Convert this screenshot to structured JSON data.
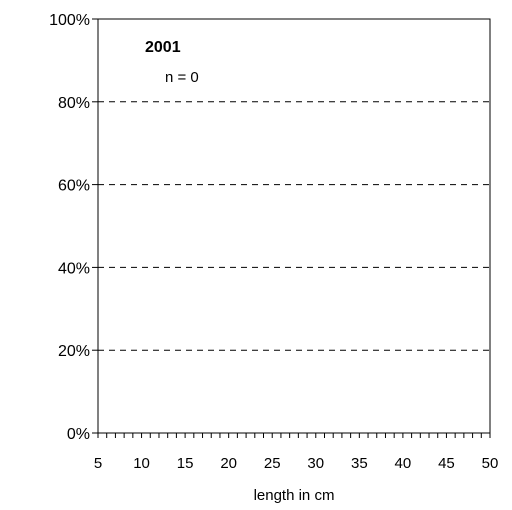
{
  "chart_data": {
    "type": "bar",
    "title": "2001",
    "annotation": "n = 0",
    "xlabel": "length in cm",
    "ylabel": "",
    "x_tick_labels": [
      "5",
      "10",
      "15",
      "20",
      "25",
      "30",
      "35",
      "40",
      "45",
      "50"
    ],
    "y_tick_labels": [
      "0%",
      "20%",
      "40%",
      "60%",
      "80%",
      "100%"
    ],
    "xlim": [
      5,
      50
    ],
    "ylim": [
      0,
      100
    ],
    "minor_x_tick_step": 1,
    "grid": "dashed horizontal at 20% steps",
    "series": [],
    "values": []
  }
}
